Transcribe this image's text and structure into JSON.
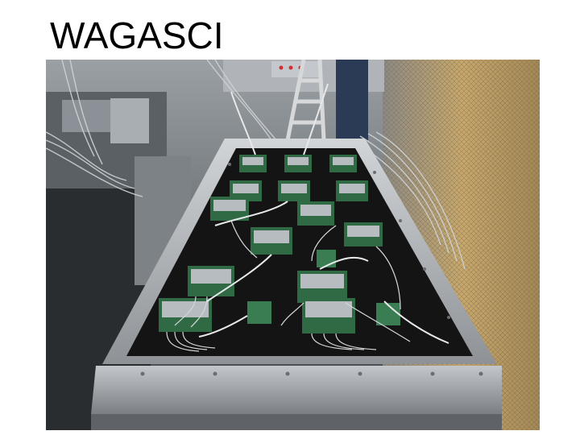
{
  "slide": {
    "title": "WAGASCI"
  },
  "photo": {
    "subject": "detector-module-with-readout-boards"
  },
  "colors": {
    "background": "#ffffff",
    "title_text": "#000000",
    "frame_metal": "#b8bcc0",
    "inner_black": "#141414",
    "pcb_green": "#2f6a45",
    "cable_gray": "#cfd3d6",
    "mesh_tan": "#b79a63"
  }
}
